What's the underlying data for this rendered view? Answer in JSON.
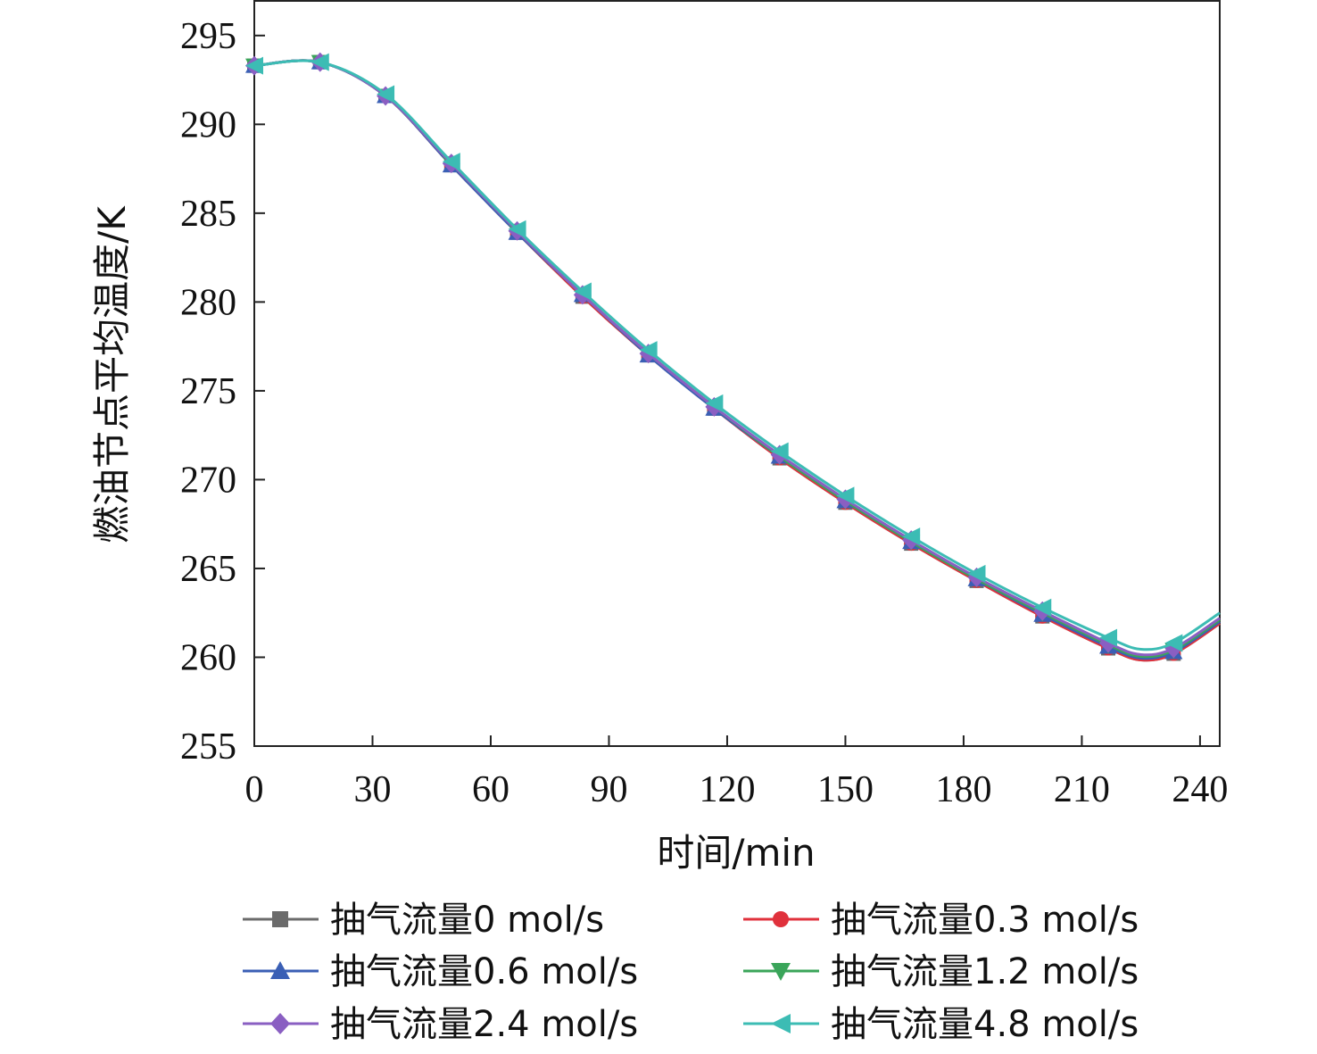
{
  "chart_data": {
    "type": "line",
    "title": "",
    "xlabel": "时间/min",
    "ylabel": "燃油节点平均温度/K",
    "xlim": [
      0,
      245
    ],
    "ylim": [
      255,
      297
    ],
    "xticks": [
      0,
      30,
      60,
      90,
      120,
      150,
      180,
      210,
      240
    ],
    "yticks": [
      255,
      260,
      265,
      270,
      275,
      280,
      285,
      290,
      295
    ],
    "grid": false,
    "legend_position": "bottom",
    "x": [
      0,
      16.7,
      33.3,
      50,
      66.7,
      83.3,
      100,
      116.7,
      133.3,
      150,
      166.7,
      183.3,
      200,
      216.7,
      233.3
    ],
    "series": [
      {
        "name": "抽气流量0 mol/s",
        "color": "#6b6b6b",
        "marker": "square",
        "values": [
          293.3,
          293.5,
          291.6,
          287.7,
          283.9,
          280.3,
          277.0,
          274.0,
          271.2,
          268.7,
          266.4,
          264.3,
          262.3,
          260.5,
          260.2
        ],
        "end": 261.9
      },
      {
        "name": "抽气流量0.3 mol/s",
        "color": "#e0313c",
        "marker": "circle",
        "values": [
          293.3,
          293.5,
          291.6,
          287.7,
          283.9,
          280.3,
          277.0,
          274.0,
          271.2,
          268.7,
          266.4,
          264.3,
          262.3,
          260.5,
          260.2
        ],
        "end": 261.9
      },
      {
        "name": "抽气流量0.6 mol/s",
        "color": "#3a5fb5",
        "marker": "triangle-up",
        "values": [
          293.3,
          293.5,
          291.6,
          287.7,
          283.9,
          280.4,
          277.0,
          274.0,
          271.3,
          268.8,
          266.5,
          264.4,
          262.4,
          260.6,
          260.3
        ],
        "end": 262.0
      },
      {
        "name": "抽气流量1.2 mol/s",
        "color": "#3aa55a",
        "marker": "triangle-down",
        "values": [
          293.3,
          293.5,
          291.6,
          287.8,
          284.0,
          280.4,
          277.1,
          274.1,
          271.3,
          268.8,
          266.5,
          264.4,
          262.5,
          260.7,
          260.4
        ],
        "end": 262.1
      },
      {
        "name": "抽气流量2.4 mol/s",
        "color": "#8a5fc2",
        "marker": "diamond",
        "values": [
          293.3,
          293.5,
          291.6,
          287.8,
          284.0,
          280.4,
          277.1,
          274.1,
          271.4,
          268.9,
          266.6,
          264.5,
          262.6,
          260.8,
          260.5
        ],
        "end": 262.2
      },
      {
        "name": "抽气流量4.8 mol/s",
        "color": "#3cbcb4",
        "marker": "triangle-left",
        "values": [
          293.3,
          293.5,
          291.7,
          287.9,
          284.1,
          280.6,
          277.3,
          274.3,
          271.6,
          269.1,
          266.8,
          264.7,
          262.8,
          261.1,
          260.8
        ],
        "end": 262.5
      }
    ]
  }
}
